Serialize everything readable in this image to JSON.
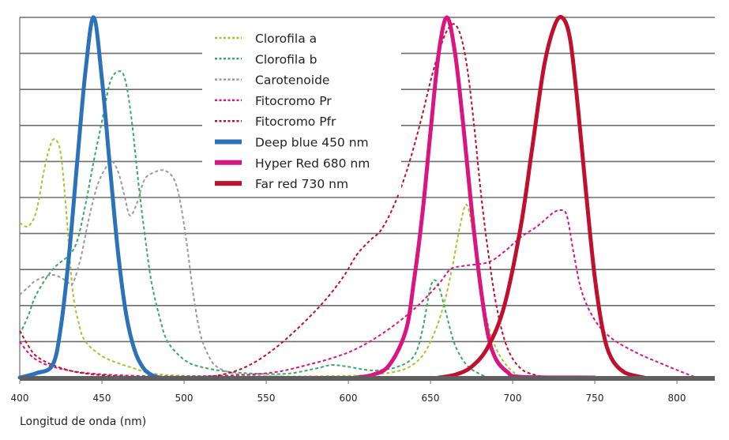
{
  "chart_data": {
    "type": "line",
    "title": "",
    "xlabel": "Longitud de onda (nm)",
    "ylabel": "",
    "xlim": [
      400,
      823
    ],
    "ylim": [
      0,
      1
    ],
    "x_ticks": [
      400,
      450,
      500,
      550,
      600,
      650,
      700,
      750,
      800
    ],
    "y_gridlines": 10,
    "grid": true,
    "legend_position": "top-center",
    "series": [
      {
        "name": "Clorofila a",
        "color": "#a9c234",
        "style": "dotted",
        "points": [
          [
            400,
            0.43
          ],
          [
            405,
            0.42
          ],
          [
            410,
            0.46
          ],
          [
            415,
            0.58
          ],
          [
            419,
            0.65
          ],
          [
            422,
            0.66
          ],
          [
            425,
            0.62
          ],
          [
            428,
            0.48
          ],
          [
            432,
            0.25
          ],
          [
            436,
            0.15
          ],
          [
            440,
            0.1
          ],
          [
            450,
            0.06
          ],
          [
            460,
            0.04
          ],
          [
            470,
            0.025
          ],
          [
            480,
            0.012
          ],
          [
            500,
            0.005
          ],
          [
            550,
            0.003
          ],
          [
            600,
            0.005
          ],
          [
            620,
            0.01
          ],
          [
            635,
            0.025
          ],
          [
            645,
            0.06
          ],
          [
            652,
            0.12
          ],
          [
            658,
            0.2
          ],
          [
            663,
            0.3
          ],
          [
            668,
            0.42
          ],
          [
            672,
            0.48
          ],
          [
            676,
            0.4
          ],
          [
            680,
            0.26
          ],
          [
            685,
            0.15
          ],
          [
            690,
            0.08
          ],
          [
            697,
            0.03
          ],
          [
            705,
            0
          ]
        ]
      },
      {
        "name": "Clorofila b",
        "color": "#3aa866",
        "style": "dotted",
        "points": [
          [
            400,
            0.12
          ],
          [
            405,
            0.17
          ],
          [
            410,
            0.23
          ],
          [
            420,
            0.3
          ],
          [
            430,
            0.34
          ],
          [
            435,
            0.38
          ],
          [
            440,
            0.48
          ],
          [
            445,
            0.6
          ],
          [
            450,
            0.71
          ],
          [
            455,
            0.82
          ],
          [
            460,
            0.85
          ],
          [
            464,
            0.83
          ],
          [
            468,
            0.72
          ],
          [
            472,
            0.55
          ],
          [
            476,
            0.4
          ],
          [
            480,
            0.27
          ],
          [
            485,
            0.17
          ],
          [
            490,
            0.1
          ],
          [
            500,
            0.05
          ],
          [
            510,
            0.03
          ],
          [
            530,
            0.015
          ],
          [
            560,
            0.01
          ],
          [
            580,
            0.025
          ],
          [
            590,
            0.035
          ],
          [
            600,
            0.03
          ],
          [
            615,
            0.02
          ],
          [
            630,
            0.03
          ],
          [
            640,
            0.06
          ],
          [
            645,
            0.13
          ],
          [
            650,
            0.25
          ],
          [
            653,
            0.27
          ],
          [
            656,
            0.24
          ],
          [
            660,
            0.17
          ],
          [
            665,
            0.09
          ],
          [
            672,
            0.035
          ],
          [
            680,
            0.01
          ],
          [
            686,
            0
          ]
        ]
      },
      {
        "name": "Carotenoide",
        "color": "#9a9a9a",
        "style": "dotted",
        "points": [
          [
            400,
            0.23
          ],
          [
            405,
            0.25
          ],
          [
            410,
            0.27
          ],
          [
            420,
            0.285
          ],
          [
            428,
            0.27
          ],
          [
            432,
            0.26
          ],
          [
            437,
            0.33
          ],
          [
            442,
            0.44
          ],
          [
            447,
            0.53
          ],
          [
            452,
            0.58
          ],
          [
            456,
            0.6
          ],
          [
            460,
            0.57
          ],
          [
            464,
            0.5
          ],
          [
            467,
            0.45
          ],
          [
            471,
            0.48
          ],
          [
            476,
            0.55
          ],
          [
            482,
            0.57
          ],
          [
            488,
            0.575
          ],
          [
            494,
            0.55
          ],
          [
            498,
            0.48
          ],
          [
            502,
            0.36
          ],
          [
            506,
            0.22
          ],
          [
            510,
            0.12
          ],
          [
            515,
            0.06
          ],
          [
            520,
            0.03
          ],
          [
            530,
            0.012
          ],
          [
            545,
            0.005
          ],
          [
            560,
            0.003
          ]
        ]
      },
      {
        "name": "Fitocromo Pr",
        "color": "#d9157f",
        "style": "dotted",
        "points": [
          [
            400,
            0.1
          ],
          [
            405,
            0.07
          ],
          [
            410,
            0.05
          ],
          [
            420,
            0.03
          ],
          [
            440,
            0.013
          ],
          [
            470,
            0.005
          ],
          [
            510,
            0.004
          ],
          [
            550,
            0.012
          ],
          [
            575,
            0.035
          ],
          [
            600,
            0.07
          ],
          [
            620,
            0.12
          ],
          [
            640,
            0.19
          ],
          [
            655,
            0.26
          ],
          [
            662,
            0.3
          ],
          [
            670,
            0.31
          ],
          [
            685,
            0.32
          ],
          [
            695,
            0.35
          ],
          [
            705,
            0.39
          ],
          [
            715,
            0.42
          ],
          [
            724,
            0.455
          ],
          [
            729,
            0.465
          ],
          [
            733,
            0.45
          ],
          [
            737,
            0.35
          ],
          [
            742,
            0.24
          ],
          [
            750,
            0.16
          ],
          [
            760,
            0.11
          ],
          [
            775,
            0.07
          ],
          [
            790,
            0.04
          ],
          [
            805,
            0.012
          ],
          [
            812,
            0
          ]
        ]
      },
      {
        "name": "Fitocromo Pfr",
        "color": "#c0102f",
        "style": "dotted",
        "points": [
          [
            400,
            0.13
          ],
          [
            405,
            0.09
          ],
          [
            410,
            0.06
          ],
          [
            420,
            0.035
          ],
          [
            435,
            0.015
          ],
          [
            455,
            0.005
          ],
          [
            480,
            0.002
          ],
          [
            510,
            0.002
          ],
          [
            525,
            0.01
          ],
          [
            540,
            0.035
          ],
          [
            555,
            0.08
          ],
          [
            570,
            0.14
          ],
          [
            585,
            0.21
          ],
          [
            597,
            0.28
          ],
          [
            605,
            0.34
          ],
          [
            613,
            0.38
          ],
          [
            620,
            0.41
          ],
          [
            628,
            0.48
          ],
          [
            636,
            0.58
          ],
          [
            644,
            0.71
          ],
          [
            651,
            0.84
          ],
          [
            657,
            0.93
          ],
          [
            661,
            0.97
          ],
          [
            665,
            0.98
          ],
          [
            669,
            0.94
          ],
          [
            673,
            0.84
          ],
          [
            677,
            0.68
          ],
          [
            681,
            0.5
          ],
          [
            686,
            0.32
          ],
          [
            691,
            0.18
          ],
          [
            697,
            0.08
          ],
          [
            705,
            0.025
          ],
          [
            715,
            0.006
          ],
          [
            725,
            0
          ]
        ]
      },
      {
        "name": "Deep blue 450 nm",
        "color": "#2b72b8",
        "style": "solid",
        "points": [
          [
            400,
            0
          ],
          [
            410,
            0.012
          ],
          [
            420,
            0.035
          ],
          [
            425,
            0.14
          ],
          [
            430,
            0.34
          ],
          [
            435,
            0.6
          ],
          [
            440,
            0.85
          ],
          [
            445,
            1.0
          ],
          [
            450,
            0.83
          ],
          [
            455,
            0.58
          ],
          [
            460,
            0.34
          ],
          [
            465,
            0.17
          ],
          [
            470,
            0.075
          ],
          [
            475,
            0.028
          ],
          [
            480,
            0.008
          ],
          [
            485,
            0
          ]
        ]
      },
      {
        "name": "Hyper Red 680 nm",
        "color": "#d9157f",
        "style": "solid",
        "points": [
          [
            605,
            0
          ],
          [
            615,
            0.008
          ],
          [
            625,
            0.035
          ],
          [
            635,
            0.13
          ],
          [
            640,
            0.27
          ],
          [
            645,
            0.45
          ],
          [
            650,
            0.68
          ],
          [
            655,
            0.9
          ],
          [
            660,
            1.0
          ],
          [
            665,
            0.9
          ],
          [
            670,
            0.7
          ],
          [
            675,
            0.47
          ],
          [
            680,
            0.27
          ],
          [
            685,
            0.12
          ],
          [
            690,
            0.05
          ],
          [
            697,
            0.015
          ],
          [
            705,
            0.002
          ],
          [
            750,
            0
          ]
        ]
      },
      {
        "name": "Far red 730 nm",
        "color": "#c0102f",
        "style": "solid",
        "points": [
          [
            655,
            0
          ],
          [
            665,
            0.008
          ],
          [
            675,
            0.03
          ],
          [
            685,
            0.085
          ],
          [
            695,
            0.2
          ],
          [
            705,
            0.42
          ],
          [
            712,
            0.64
          ],
          [
            719,
            0.86
          ],
          [
            725,
            0.97
          ],
          [
            730,
            1.0
          ],
          [
            735,
            0.94
          ],
          [
            740,
            0.74
          ],
          [
            745,
            0.5
          ],
          [
            750,
            0.28
          ],
          [
            755,
            0.13
          ],
          [
            760,
            0.055
          ],
          [
            768,
            0.015
          ],
          [
            780,
            0
          ]
        ]
      }
    ]
  }
}
